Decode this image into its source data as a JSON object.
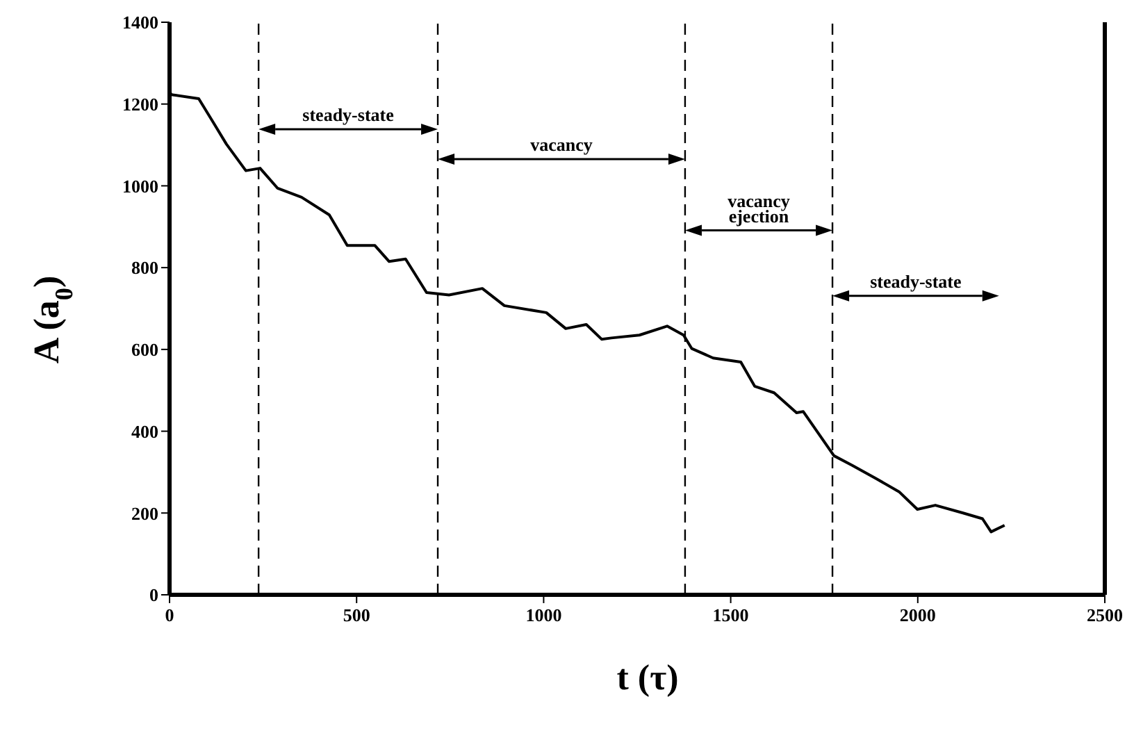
{
  "chart_data": {
    "type": "line",
    "xlabel": "t (τ)",
    "ylabel": "A (a$_{0}$)",
    "x": [
      0,
      5,
      78,
      115,
      152,
      204,
      242,
      289,
      353,
      427,
      475,
      549,
      587,
      631,
      687,
      747,
      836,
      895,
      1007,
      1059,
      1114,
      1155,
      1181,
      1256,
      1330,
      1374,
      1396,
      1453,
      1527,
      1564,
      1616,
      1676,
      1694,
      1776,
      1824,
      1887,
      1950,
      1999,
      2047,
      2121,
      2173,
      2196,
      2232
    ],
    "series": [
      {
        "color": "#000000",
        "values": [
          1230,
          1223,
          1213,
          1158,
          1102,
          1037,
          1043,
          994,
          972,
          929,
          854,
          854,
          815,
          821,
          739,
          733,
          749,
          707,
          690,
          651,
          661,
          625,
          628,
          635,
          657,
          635,
          602,
          579,
          569,
          510,
          494,
          445,
          448,
          340,
          317,
          285,
          252,
          209,
          219,
          200,
          186,
          154,
          170
        ]
      }
    ],
    "xlim": [
      0,
      2500
    ],
    "xticks": [
      0,
      500,
      1000,
      1500,
      2000,
      2500
    ],
    "ylim": [
      0,
      1400
    ],
    "yticks": [
      0,
      200,
      400,
      600,
      800,
      1000,
      1200,
      1400
    ],
    "marker": "none",
    "line_style": "solid",
    "ref_lines": [
      {
        "axis": "x",
        "value": 238,
        "color": "#000000",
        "line_style": "dashed"
      },
      {
        "axis": "x",
        "value": 717,
        "color": "#000000",
        "line_style": "dashed"
      },
      {
        "axis": "x",
        "value": 1378,
        "color": "#000000",
        "line_style": "dashed"
      },
      {
        "axis": "x",
        "value": 1772,
        "color": "#000000",
        "line_style": "dashed"
      }
    ],
    "annotations": [
      "steady-state",
      "vacancy",
      "vacancy ejection",
      "steady-state"
    ]
  }
}
